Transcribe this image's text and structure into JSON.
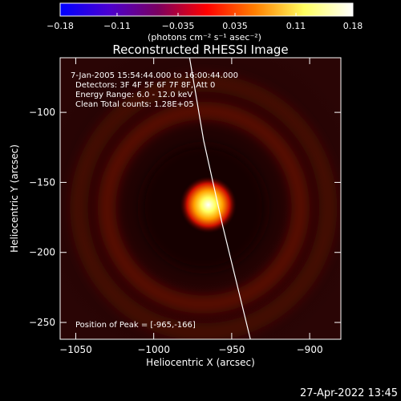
{
  "chart_data": {
    "type": "heatmap",
    "title": "Reconstructed RHESSI Image",
    "xlabel": "Heliocentric X (arcsec)",
    "ylabel": "Heliocentric Y (arcsec)",
    "xlim": [
      -1060,
      -880
    ],
    "ylim": [
      -262,
      -61
    ],
    "x_ticks": [
      -1050,
      -1000,
      -950,
      -900
    ],
    "x_tick_labels": [
      "−1050",
      "−1000",
      "−950",
      "−900"
    ],
    "y_ticks": [
      -100,
      -150,
      -200,
      -250
    ],
    "y_tick_labels": [
      "−100",
      "−150",
      "−200",
      "−250"
    ],
    "colorbar": {
      "range": [
        -0.18,
        0.18
      ],
      "ticks": [
        -0.18,
        -0.11,
        -0.035,
        0.035,
        0.11,
        0.18
      ],
      "tick_labels": [
        "−0.18",
        "−0.11",
        "−0.035",
        "0.035",
        "0.11",
        "0.18"
      ],
      "units_label": "(photons cm⁻² s⁻¹ asec⁻²)",
      "colormap_stops": [
        "#0000ff",
        "#4b00d0",
        "#7a0060",
        "#ff0000",
        "#ff8000",
        "#ffff60",
        "#ffffff"
      ]
    },
    "source": {
      "peak": [
        -965,
        -166
      ],
      "peak_value": 0.18,
      "fwhm_arcsec": 14
    },
    "rings": [
      {
        "center": [
          -968,
          -168
        ],
        "radius_arcsec": 62,
        "intensity": 0.07
      },
      {
        "center": [
          -968,
          -168
        ],
        "radius_arcsec": 80,
        "intensity": 0.05
      }
    ],
    "limb": {
      "points": [
        [
          -977,
          -61
        ],
        [
          -968,
          -120
        ],
        [
          -956,
          -180
        ],
        [
          -938,
          -262
        ]
      ]
    },
    "annotations": {
      "line1": "7-Jan-2005 15:54:44.000 to 16:00:44.000",
      "line2": "Detectors: 3F 4F 5F 6F 7F 8F, Att 0",
      "line3": "Energy Range: 6.0 - 12.0 keV",
      "line4": "Clean     Total counts: 1.28E+05",
      "peak": "Position of Peak = [-965,-166]"
    },
    "timestamp": "27-Apr-2022 13:45",
    "grid": false
  }
}
